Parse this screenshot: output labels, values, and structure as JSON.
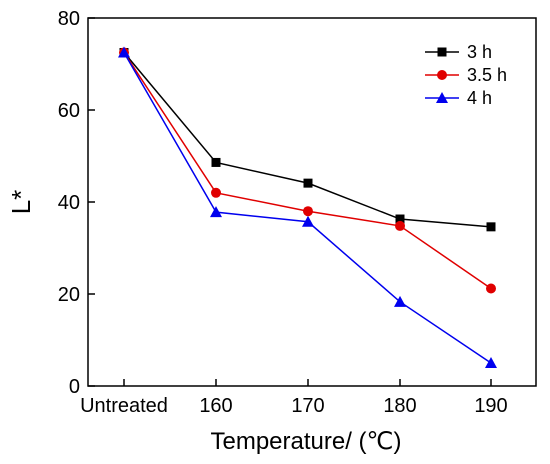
{
  "chart_data": {
    "type": "line",
    "categories": [
      "Untreated",
      "160",
      "170",
      "180",
      "190"
    ],
    "xlabel": "Temperature/ (℃)",
    "ylabel": "L*",
    "ylim": [
      0,
      80
    ],
    "yticks": [
      0,
      20,
      40,
      60,
      80
    ],
    "grid": false,
    "legend_position": "top-right",
    "series": [
      {
        "name": "3 h",
        "values": [
          72.5,
          48.6,
          44.1,
          36.3,
          34.6
        ],
        "color": "#000000",
        "marker": "square"
      },
      {
        "name": "3.5 h",
        "values": [
          72.5,
          42.0,
          38.0,
          34.8,
          21.2
        ],
        "color": "#e00000",
        "marker": "circle"
      },
      {
        "name": "4 h",
        "values": [
          72.5,
          37.8,
          35.7,
          18.3,
          5.0
        ],
        "color": "#0000ee",
        "marker": "triangle"
      }
    ]
  }
}
